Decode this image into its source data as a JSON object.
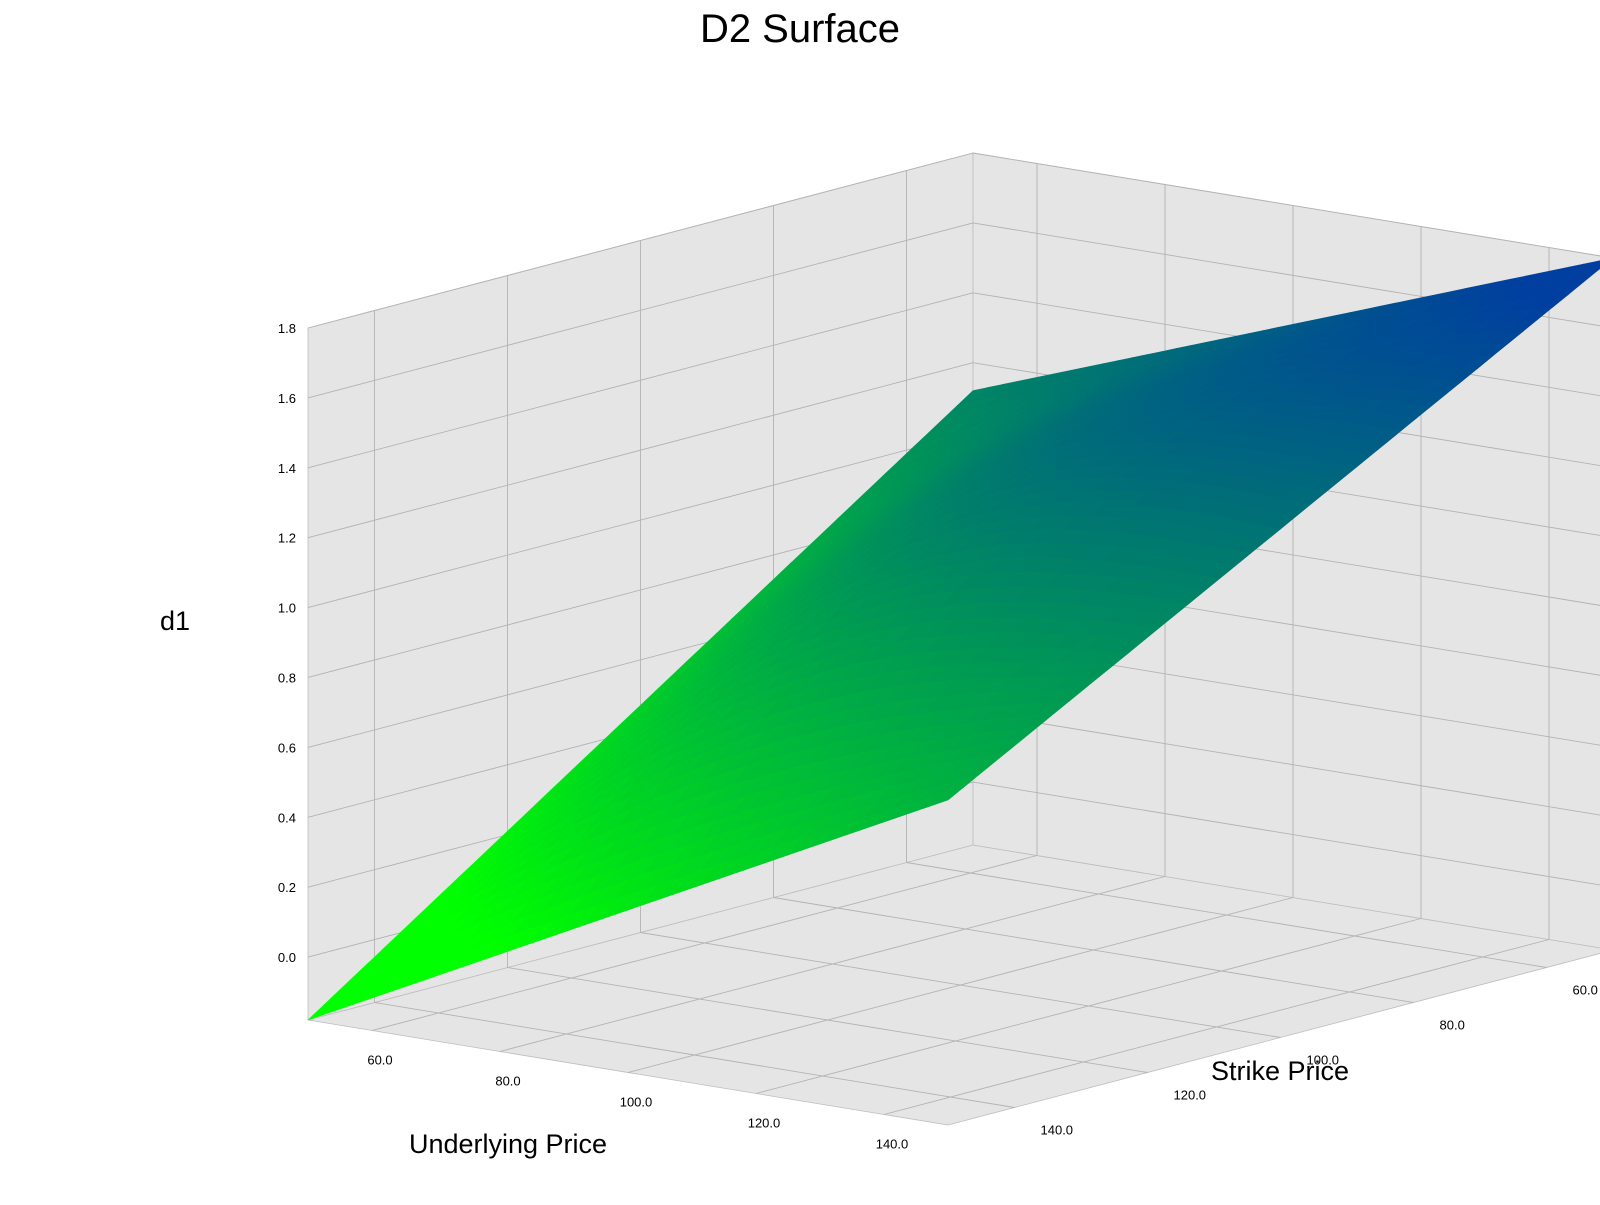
{
  "chart_data": {
    "type": "surface3d",
    "title": "D2 Surface",
    "xlabel": "Underlying Price",
    "ylabel": "Strike Price",
    "zlabel": "d1",
    "x_ticks": [
      "60.0",
      "80.0",
      "100.0",
      "120.0",
      "140.0"
    ],
    "y_ticks": [
      "60.0",
      "80.0",
      "100.0",
      "120.0",
      "140.0"
    ],
    "z_ticks": [
      "0.0",
      "0.2",
      "0.4",
      "0.6",
      "0.8",
      "1.0",
      "1.2",
      "1.4",
      "1.6",
      "1.8"
    ],
    "xlim": [
      50,
      150
    ],
    "ylim": [
      50,
      150
    ],
    "zlim": [
      -0.18,
      1.8
    ],
    "corner_values": [
      {
        "x": 50,
        "y": 50,
        "z": 1.12
      },
      {
        "x": 150,
        "y": 50,
        "z": 1.8
      },
      {
        "x": 50,
        "y": 150,
        "z": -0.18
      },
      {
        "x": 150,
        "y": 150,
        "z": 0.75
      }
    ],
    "colormap": {
      "low": "#00ff00",
      "high": "#003f9f"
    },
    "pane_color": "#e5e5e5",
    "grid": true
  }
}
